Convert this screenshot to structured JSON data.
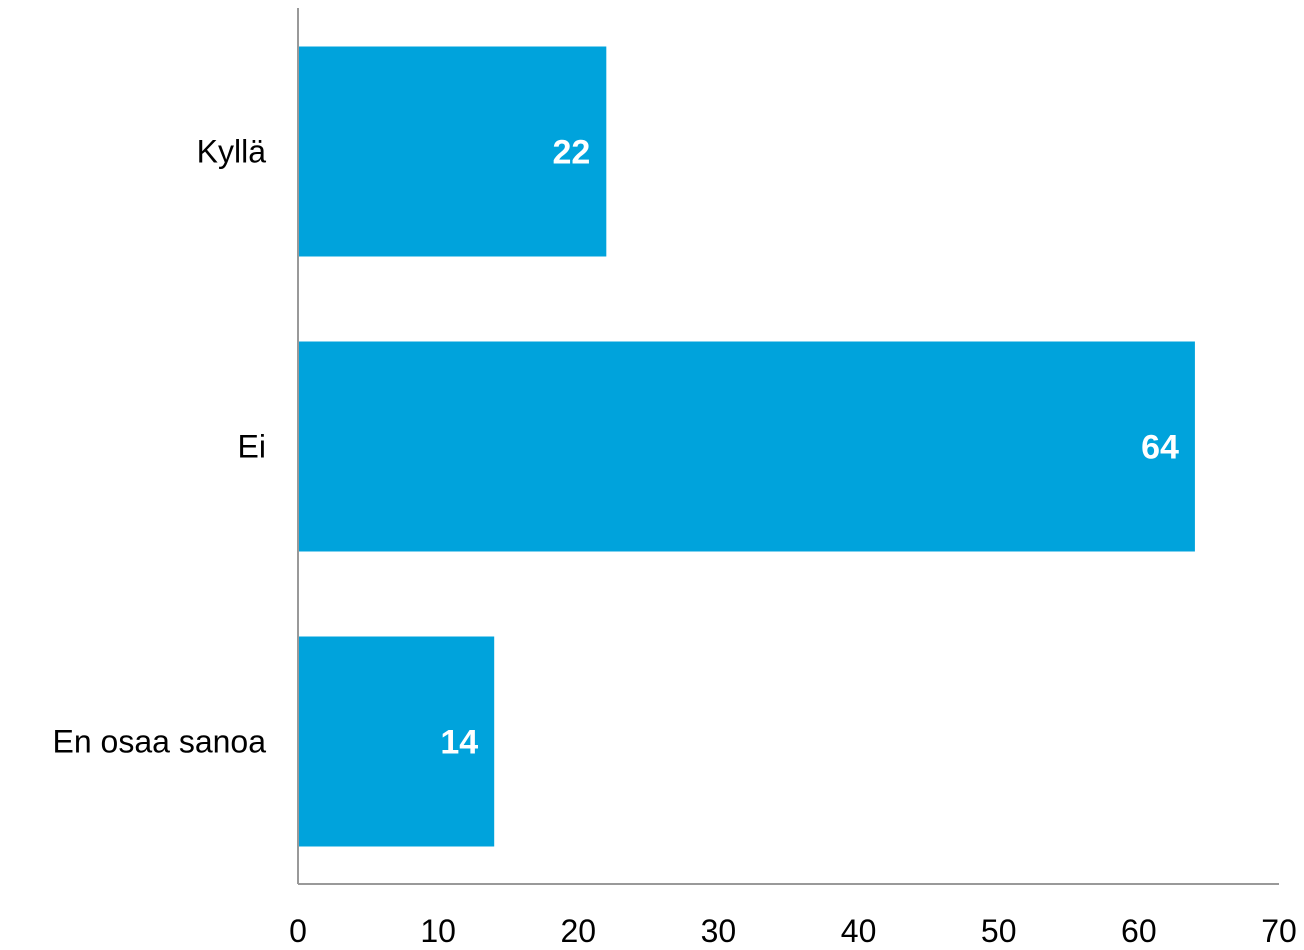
{
  "chart_data": {
    "type": "bar",
    "orientation": "horizontal",
    "categories": [
      "Kyllä",
      "Ei",
      "En osaa sanoa"
    ],
    "values": [
      22,
      64,
      14
    ],
    "data_labels": [
      "22",
      "64",
      "14"
    ],
    "xlim": [
      0,
      70
    ],
    "x_ticks": [
      0,
      10,
      20,
      30,
      40,
      50,
      60,
      70
    ],
    "title": "",
    "xlabel": "",
    "ylabel": "",
    "grid": false,
    "legend": "none",
    "colors": {
      "bar": "#00a3dc",
      "axis": "#999999"
    }
  }
}
